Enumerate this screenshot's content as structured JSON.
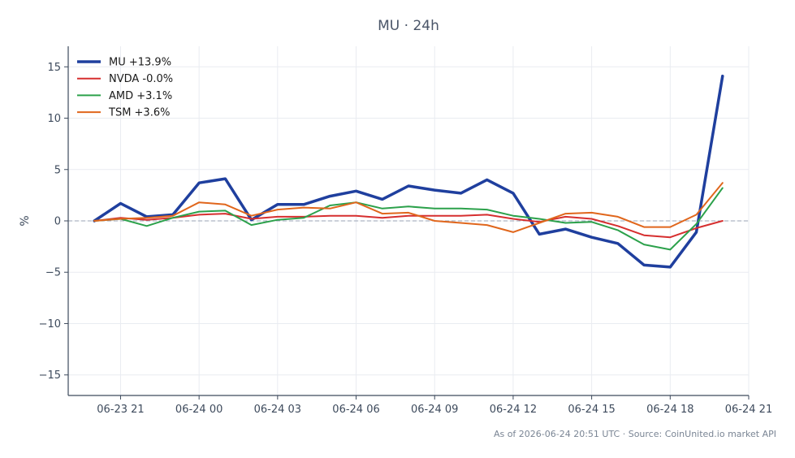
{
  "chart_data": {
    "type": "line",
    "title": "MU · 24h",
    "xlabel": "",
    "ylabel": "%",
    "ylim": [
      -17,
      17
    ],
    "yticks": [
      15,
      10,
      5,
      0,
      -5,
      -10,
      -15
    ],
    "ytick_labels": [
      "15",
      "10",
      "5",
      "0",
      "−5",
      "−10",
      "−15"
    ],
    "xticks": [
      {
        "label": "06-23 21",
        "x": "06-23 21:00"
      },
      {
        "label": "06-24 00",
        "x": "06-24 00:00"
      },
      {
        "label": "06-24 03",
        "x": "06-24 03:00"
      },
      {
        "label": "06-24 06",
        "x": "06-24 06:00"
      },
      {
        "label": "06-24 09",
        "x": "06-24 09:00"
      },
      {
        "label": "06-24 12",
        "x": "06-24 12:00"
      },
      {
        "label": "06-24 15",
        "x": "06-24 15:00"
      },
      {
        "label": "06-24 18",
        "x": "06-24 18:00"
      },
      {
        "label": "06-24 21",
        "x": "06-24 21:00"
      }
    ],
    "xlim": [
      "06-23 19:00",
      "06-24 21:00"
    ],
    "x": [
      "06-23 20:00",
      "06-23 21:00",
      "06-23 22:00",
      "06-23 23:00",
      "06-24 00:00",
      "06-24 01:00",
      "06-24 02:00",
      "06-24 03:00",
      "06-24 04:00",
      "06-24 05:00",
      "06-24 06:00",
      "06-24 07:00",
      "06-24 08:00",
      "06-24 09:00",
      "06-24 10:00",
      "06-24 11:00",
      "06-24 12:00",
      "06-24 13:00",
      "06-24 14:00",
      "06-24 15:00",
      "06-24 16:00",
      "06-24 17:00",
      "06-24 18:00",
      "06-24 19:00",
      "06-24 20:00"
    ],
    "series": [
      {
        "name": "MU +13.9%",
        "color": "#1f3f9e",
        "width": 3.5,
        "values": [
          0,
          1.7,
          0.4,
          0.6,
          3.7,
          4.1,
          0.1,
          1.6,
          1.6,
          2.4,
          2.9,
          2.1,
          3.4,
          3.0,
          2.7,
          4.0,
          2.7,
          -1.3,
          -0.8,
          -1.6,
          -2.2,
          -4.3,
          -4.5,
          -1.1,
          14.1
        ]
      },
      {
        "name": "NVDA -0.0%",
        "color": "#d62f2f",
        "width": 2,
        "values": [
          0,
          0.3,
          0.1,
          0.3,
          0.6,
          0.7,
          0.2,
          0.4,
          0.4,
          0.5,
          0.5,
          0.3,
          0.5,
          0.5,
          0.5,
          0.6,
          0.2,
          -0.1,
          0.4,
          0.2,
          -0.5,
          -1.4,
          -1.6,
          -0.7,
          0
        ]
      },
      {
        "name": "AMD +3.1%",
        "color": "#2ca14b",
        "width": 2,
        "values": [
          0,
          0.2,
          -0.5,
          0.3,
          0.9,
          1.0,
          -0.4,
          0.1,
          0.3,
          1.5,
          1.8,
          1.2,
          1.4,
          1.2,
          1.2,
          1.1,
          0.5,
          0.2,
          -0.2,
          -0.1,
          -0.9,
          -2.3,
          -2.8,
          -0.3,
          3.2
        ]
      },
      {
        "name": "TSM +3.6%",
        "color": "#e0661c",
        "width": 2,
        "values": [
          0,
          0.2,
          0.3,
          0.5,
          1.8,
          1.6,
          0.5,
          1.1,
          1.3,
          1.2,
          1.8,
          0.7,
          0.8,
          0,
          -0.2,
          -0.4,
          -1.1,
          -0.2,
          0.7,
          0.8,
          0.4,
          -0.6,
          -0.6,
          0.6,
          3.7
        ]
      }
    ],
    "reference_line": {
      "y": 0,
      "style": "dashed",
      "color": "#9aa3b5"
    },
    "grid": true,
    "legend": "top-left",
    "footer": "As of 2026-06-24 20:51 UTC · Source: CoinUnited.io market API"
  }
}
